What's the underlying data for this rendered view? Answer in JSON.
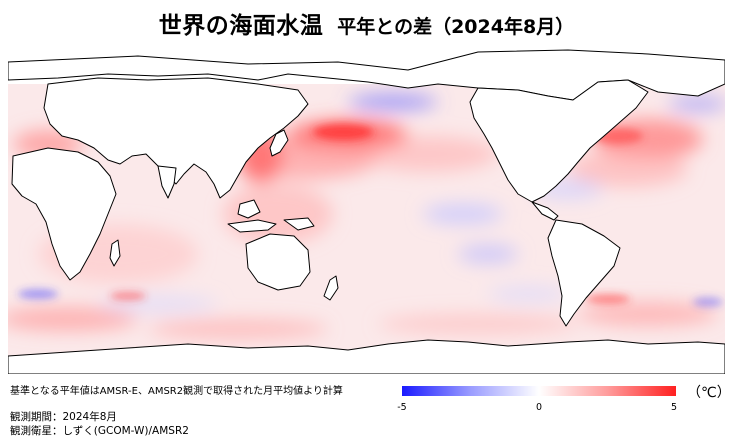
{
  "title": {
    "main": "世界の海面水温",
    "sub": "平年との差（2024年8月）"
  },
  "map": {
    "projection": "equirectangular, Pacific-centered",
    "ocean_anomaly_colors": {
      "cold": "#3333ff",
      "neutral": "#ffffff",
      "warm": "#ff2a2a"
    },
    "land_color": "#ffffff",
    "coastline_color": "#000000"
  },
  "footnote": "基準となる平年値はAMSR-E、AMSR2観測で取得された月平均値より計算",
  "meta": {
    "period_label": "観測期間：",
    "period_value": "2024年8月",
    "satellite_label": "観測衛星：",
    "satellite_value": "しずく(GCOM-W)/AMSR2"
  },
  "colorbar": {
    "min_label": "-5",
    "mid_label": "0",
    "max_label": "5",
    "unit": "（℃）",
    "min_color": "#1a1aff",
    "max_color": "#ff2020"
  }
}
